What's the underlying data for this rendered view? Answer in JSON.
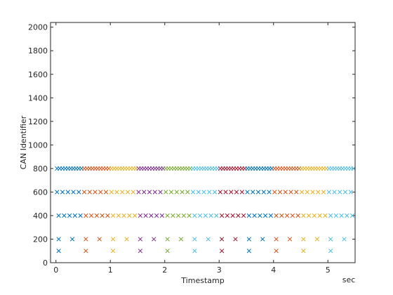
{
  "chart_data": {
    "type": "scatter",
    "xlabel": "Timestamp",
    "xunit": "sec",
    "ylabel": "CAN Identifier",
    "xlim": [
      -0.1,
      5.5
    ],
    "xticks": [
      0,
      1,
      2,
      3,
      4,
      5
    ],
    "ylim": [
      0,
      2040
    ],
    "yticks": [
      0,
      200,
      400,
      600,
      800,
      1000,
      1200,
      1400,
      1600,
      1800,
      2000
    ],
    "marker": "x",
    "series": [
      {
        "color": "#0072BD",
        "x": [
          0.05,
          0.05,
          0.3,
          0.05,
          0.15,
          0.25,
          0.35,
          0.45,
          0.02,
          0.12,
          0.22,
          0.32,
          0.42,
          0.02,
          0.07,
          0.12,
          0.17,
          0.22,
          0.27,
          0.32,
          0.37,
          0.42,
          0.47
        ],
        "values": [
          100,
          200,
          200,
          400,
          400,
          400,
          400,
          400,
          600,
          600,
          600,
          600,
          600,
          800,
          800,
          800,
          800,
          800,
          800,
          800,
          800,
          800,
          800
        ]
      },
      {
        "color": "#D95319",
        "x": [
          0.55,
          0.55,
          0.8,
          0.55,
          0.65,
          0.75,
          0.85,
          0.95,
          0.52,
          0.62,
          0.72,
          0.82,
          0.92,
          0.52,
          0.57,
          0.62,
          0.67,
          0.72,
          0.77,
          0.82,
          0.87,
          0.92,
          0.97
        ],
        "values": [
          100,
          200,
          200,
          400,
          400,
          400,
          400,
          400,
          600,
          600,
          600,
          600,
          600,
          800,
          800,
          800,
          800,
          800,
          800,
          800,
          800,
          800,
          800
        ]
      },
      {
        "color": "#EDB120",
        "x": [
          1.05,
          1.05,
          1.3,
          1.05,
          1.15,
          1.25,
          1.35,
          1.45,
          1.02,
          1.12,
          1.22,
          1.32,
          1.42,
          1.02,
          1.07,
          1.12,
          1.17,
          1.22,
          1.27,
          1.32,
          1.37,
          1.42,
          1.47
        ],
        "values": [
          100,
          200,
          200,
          400,
          400,
          400,
          400,
          400,
          600,
          600,
          600,
          600,
          600,
          800,
          800,
          800,
          800,
          800,
          800,
          800,
          800,
          800,
          800
        ]
      },
      {
        "color": "#7E2F8E",
        "x": [
          1.55,
          1.55,
          1.8,
          1.55,
          1.65,
          1.75,
          1.85,
          1.95,
          1.52,
          1.62,
          1.72,
          1.82,
          1.92,
          1.52,
          1.57,
          1.62,
          1.67,
          1.72,
          1.77,
          1.82,
          1.87,
          1.92,
          1.97
        ],
        "values": [
          100,
          200,
          200,
          400,
          400,
          400,
          400,
          400,
          600,
          600,
          600,
          600,
          600,
          800,
          800,
          800,
          800,
          800,
          800,
          800,
          800,
          800,
          800
        ]
      },
      {
        "color": "#77AC30",
        "x": [
          2.05,
          2.05,
          2.3,
          2.05,
          2.15,
          2.25,
          2.35,
          2.45,
          2.02,
          2.12,
          2.22,
          2.32,
          2.42,
          2.02,
          2.07,
          2.12,
          2.17,
          2.22,
          2.27,
          2.32,
          2.37,
          2.42,
          2.47
        ],
        "values": [
          100,
          200,
          200,
          400,
          400,
          400,
          400,
          400,
          600,
          600,
          600,
          600,
          600,
          800,
          800,
          800,
          800,
          800,
          800,
          800,
          800,
          800,
          800
        ]
      },
      {
        "color": "#4DBEEE",
        "x": [
          2.55,
          2.55,
          2.8,
          2.55,
          2.65,
          2.75,
          2.85,
          2.95,
          2.52,
          2.62,
          2.72,
          2.82,
          2.92,
          2.52,
          2.57,
          2.62,
          2.67,
          2.72,
          2.77,
          2.82,
          2.87,
          2.92,
          2.97
        ],
        "values": [
          100,
          200,
          200,
          400,
          400,
          400,
          400,
          400,
          600,
          600,
          600,
          600,
          600,
          800,
          800,
          800,
          800,
          800,
          800,
          800,
          800,
          800,
          800
        ]
      },
      {
        "color": "#A2142F",
        "x": [
          3.05,
          3.05,
          3.3,
          3.05,
          3.15,
          3.25,
          3.35,
          3.45,
          3.02,
          3.12,
          3.22,
          3.32,
          3.42,
          3.02,
          3.07,
          3.12,
          3.17,
          3.22,
          3.27,
          3.32,
          3.37,
          3.42,
          3.47
        ],
        "values": [
          100,
          200,
          200,
          400,
          400,
          400,
          400,
          400,
          600,
          600,
          600,
          600,
          600,
          800,
          800,
          800,
          800,
          800,
          800,
          800,
          800,
          800,
          800
        ]
      },
      {
        "color": "#0072BD",
        "x": [
          3.55,
          3.55,
          3.8,
          3.55,
          3.65,
          3.75,
          3.85,
          3.95,
          3.52,
          3.62,
          3.72,
          3.82,
          3.92,
          3.52,
          3.57,
          3.62,
          3.67,
          3.72,
          3.77,
          3.82,
          3.87,
          3.92,
          3.97
        ],
        "values": [
          100,
          200,
          200,
          400,
          400,
          400,
          400,
          400,
          600,
          600,
          600,
          600,
          600,
          800,
          800,
          800,
          800,
          800,
          800,
          800,
          800,
          800,
          800
        ]
      },
      {
        "color": "#D95319",
        "x": [
          4.05,
          4.05,
          4.3,
          4.05,
          4.15,
          4.25,
          4.35,
          4.45,
          4.02,
          4.12,
          4.22,
          4.32,
          4.42,
          4.02,
          4.07,
          4.12,
          4.17,
          4.22,
          4.27,
          4.32,
          4.37,
          4.42,
          4.47
        ],
        "values": [
          100,
          200,
          200,
          400,
          400,
          400,
          400,
          400,
          600,
          600,
          600,
          600,
          600,
          800,
          800,
          800,
          800,
          800,
          800,
          800,
          800,
          800,
          800
        ]
      },
      {
        "color": "#EDB120",
        "x": [
          4.55,
          4.55,
          4.8,
          4.55,
          4.65,
          4.75,
          4.85,
          4.95,
          4.52,
          4.62,
          4.72,
          4.82,
          4.92,
          4.52,
          4.57,
          4.62,
          4.67,
          4.72,
          4.77,
          4.82,
          4.87,
          4.92,
          4.97
        ],
        "values": [
          100,
          200,
          200,
          400,
          400,
          400,
          400,
          400,
          600,
          600,
          600,
          600,
          600,
          800,
          800,
          800,
          800,
          800,
          800,
          800,
          800,
          800,
          800
        ]
      },
      {
        "color": "#4DBEEE",
        "x": [
          5.05,
          5.05,
          5.3,
          5.05,
          5.15,
          5.25,
          5.35,
          5.45,
          5.02,
          5.12,
          5.22,
          5.32,
          5.42,
          5.02,
          5.07,
          5.12,
          5.17,
          5.22,
          5.27,
          5.32,
          5.37,
          5.42,
          5.47
        ],
        "values": [
          100,
          200,
          200,
          400,
          400,
          400,
          400,
          400,
          600,
          600,
          600,
          600,
          600,
          800,
          800,
          800,
          800,
          800,
          800,
          800,
          800,
          800,
          800
        ]
      }
    ]
  }
}
